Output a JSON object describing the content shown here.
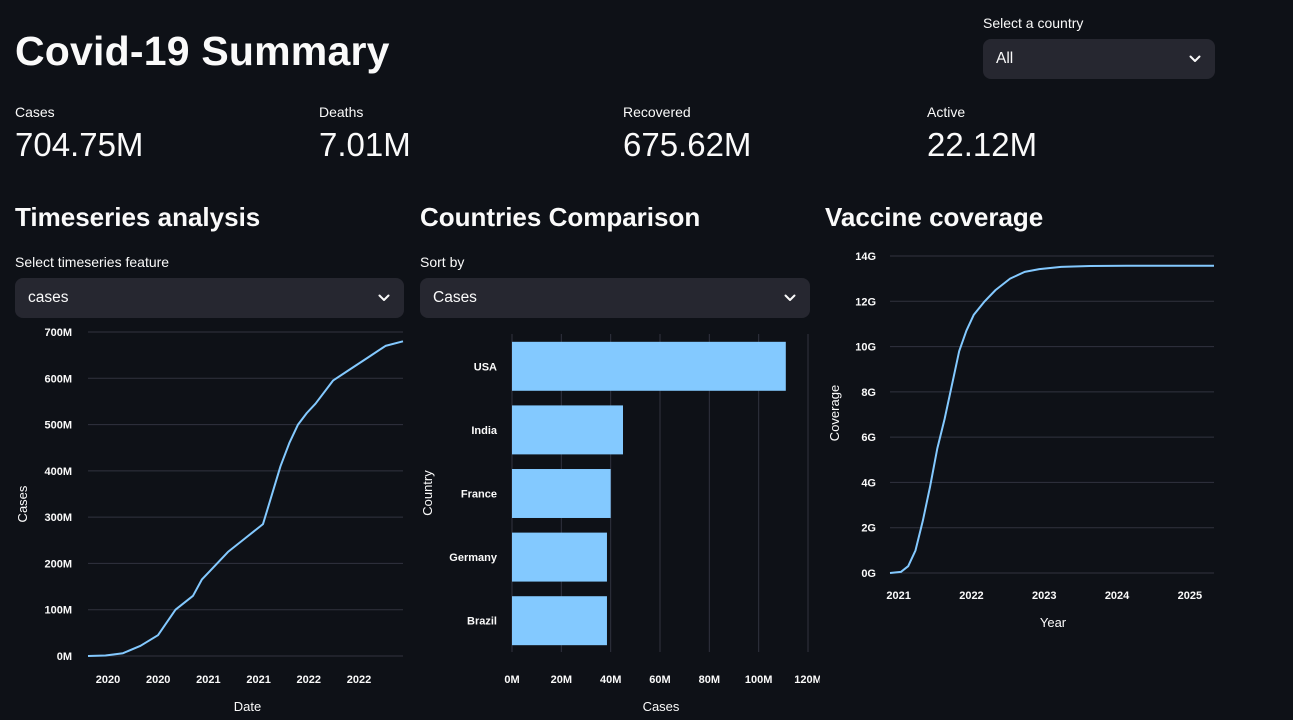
{
  "title": "Covid-19 Summary",
  "country_select": {
    "label": "Select a country",
    "value": "All"
  },
  "metrics": [
    {
      "label": "Cases",
      "value": "704.75M"
    },
    {
      "label": "Deaths",
      "value": "7.01M"
    },
    {
      "label": "Recovered",
      "value": "675.62M"
    },
    {
      "label": "Active",
      "value": "22.12M"
    }
  ],
  "timeseries": {
    "heading": "Timeseries analysis",
    "select_label": "Select timeseries feature",
    "select_value": "cases"
  },
  "comparison": {
    "heading": "Countries Comparison",
    "select_label": "Sort by",
    "select_value": "Cases"
  },
  "vaccine": {
    "heading": "Vaccine coverage"
  },
  "colors": {
    "background": "#0e1117",
    "select_bg": "#262730",
    "series": "#83c9ff",
    "grid": "#31333f"
  },
  "chart_data": [
    {
      "type": "line",
      "xlabel": "Date",
      "ylabel": "Cases",
      "ylim": [
        0,
        700000000
      ],
      "yticks": [
        "0M",
        "100M",
        "200M",
        "300M",
        "400M",
        "500M",
        "600M",
        "700M"
      ],
      "xticks": [
        "2020",
        "2020",
        "2021",
        "2021",
        "2022",
        "2022"
      ],
      "grid": "horizontal",
      "x": [
        "2020-01",
        "2020-03",
        "2020-05",
        "2020-07",
        "2020-09",
        "2020-11",
        "2021-01",
        "2021-02",
        "2021-03",
        "2021-05",
        "2021-07",
        "2021-09",
        "2021-11",
        "2021-12",
        "2022-01",
        "2022-02",
        "2022-03",
        "2022-05",
        "2022-07",
        "2022-09",
        "2022-11",
        "2023-01"
      ],
      "values": [
        0,
        1000000,
        6000000,
        22000000,
        45000000,
        100000000,
        130000000,
        165000000,
        185000000,
        225000000,
        255000000,
        285000000,
        410000000,
        460000000,
        500000000,
        525000000,
        545000000,
        595000000,
        620000000,
        645000000,
        670000000,
        680000000
      ]
    },
    {
      "type": "bar",
      "orientation": "horizontal",
      "xlabel": "Cases",
      "ylabel": "Country",
      "categories": [
        "USA",
        "India",
        "France",
        "Germany",
        "Brazil"
      ],
      "values": [
        111000000,
        45000000,
        40000000,
        38500000,
        38500000
      ],
      "xlim": [
        0,
        120000000
      ],
      "xticks": [
        "0M",
        "20M",
        "40M",
        "60M",
        "80M",
        "100M",
        "120M"
      ],
      "grid": "vertical"
    },
    {
      "type": "line",
      "xlabel": "Year",
      "ylabel": "Coverage",
      "ylim": [
        0,
        14000000000
      ],
      "yticks": [
        "0G",
        "2G",
        "4G",
        "6G",
        "8G",
        "10G",
        "12G",
        "14G"
      ],
      "xticks": [
        "2021",
        "2022",
        "2023",
        "2024",
        "2025"
      ],
      "grid": "horizontal",
      "x": [
        2020.95,
        2021.1,
        2021.2,
        2021.3,
        2021.4,
        2021.5,
        2021.6,
        2021.7,
        2021.8,
        2021.9,
        2022.0,
        2022.1,
        2022.25,
        2022.4,
        2022.6,
        2022.8,
        2023.0,
        2023.3,
        2023.7,
        2024.2,
        2025.4
      ],
      "values": [
        0,
        50000000,
        300000000,
        1000000000,
        2300000000,
        3800000000,
        5500000000,
        6800000000,
        8300000000,
        9800000000,
        10700000000,
        11400000000,
        12000000000,
        12500000000,
        13000000000,
        13300000000,
        13420000000,
        13520000000,
        13560000000,
        13570000000,
        13570000000
      ]
    }
  ]
}
